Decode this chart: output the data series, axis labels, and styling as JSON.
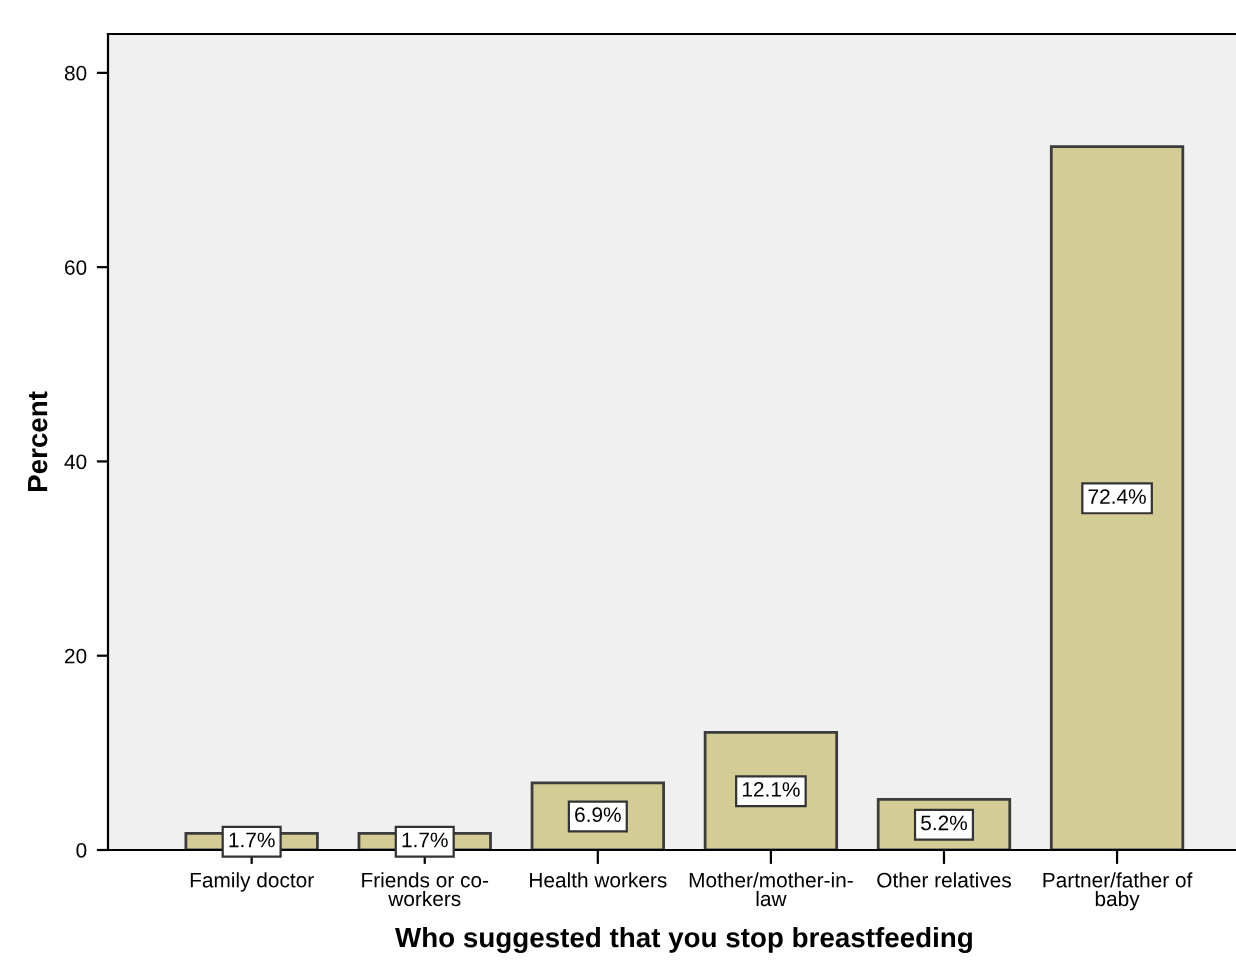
{
  "chart_data": {
    "type": "bar",
    "xlabel": "Who suggested that you stop breastfeeding",
    "ylabel": "Percent",
    "categories": [
      "Family doctor",
      "Friends or co-\nworkers",
      "Health workers",
      "Mother/mother-in-\nlaw",
      "Other relatives",
      "Partner/father of\nbaby"
    ],
    "values": [
      1.7,
      1.7,
      6.9,
      12.1,
      5.2,
      72.4
    ],
    "value_labels": [
      "1.7%",
      "1.7%",
      "6.9%",
      "12.1%",
      "5.2%",
      "72.4%"
    ],
    "color": "#d3cd95",
    "ylim": [
      0,
      84
    ],
    "yticks": [
      0,
      20,
      40,
      60,
      80
    ],
    "grid": false
  }
}
